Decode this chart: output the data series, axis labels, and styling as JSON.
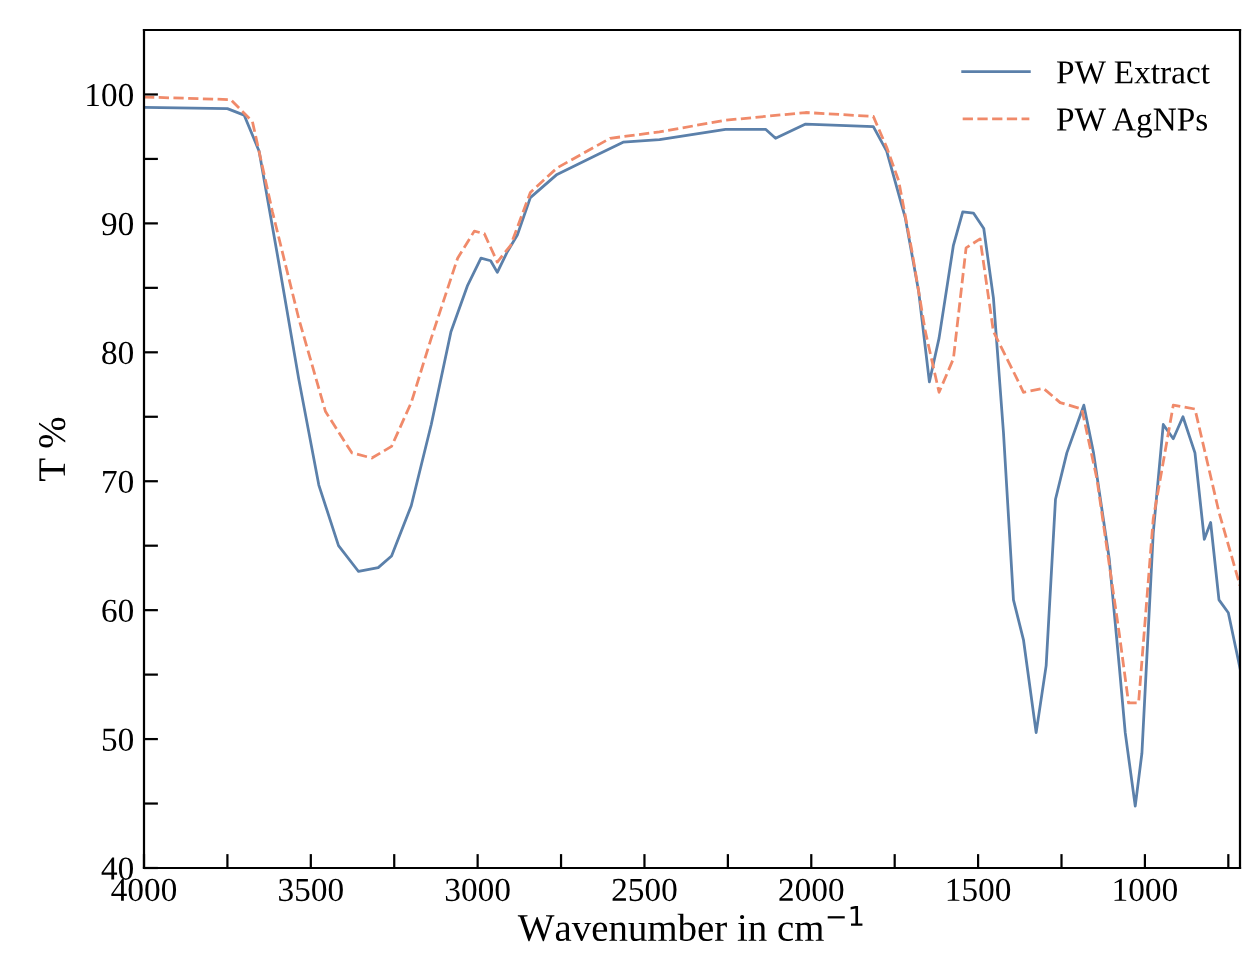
{
  "chart_data": {
    "type": "line",
    "xlabel": "Wavenumber in cm$^{−1}$",
    "ylabel": "T %",
    "xlim": [
      4000,
      715
    ],
    "ylim": [
      40,
      105
    ],
    "xticks": [
      4000,
      {
        "value": 3750,
        "label": null
      },
      3500,
      {
        "value": 3250,
        "label": null
      },
      3000,
      {
        "value": 2750,
        "label": null
      },
      2500,
      {
        "value": 2250,
        "label": null
      },
      2000,
      {
        "value": 1750,
        "label": null
      },
      1500,
      {
        "value": 1250,
        "label": null
      },
      1000,
      {
        "value": 750,
        "label": null
      }
    ],
    "yticks": [
      40,
      {
        "value": 45,
        "label": null
      },
      50,
      {
        "value": 55,
        "label": null
      },
      60,
      {
        "value": 65,
        "label": null
      },
      70,
      {
        "value": 75,
        "label": null
      },
      80,
      {
        "value": 85,
        "label": null
      },
      90,
      {
        "value": 95,
        "label": null
      },
      100
    ],
    "grid": false,
    "legend": "top right",
    "marker": "none",
    "series": [
      {
        "name": "PW Extract",
        "color": "#5b80aa",
        "line_style": "solid",
        "x": [
          4000,
          3750,
          3700,
          3655,
          3595,
          3536,
          3476,
          3417,
          3357,
          3298,
          3258,
          3199,
          3139,
          3080,
          3030,
          2990,
          2961,
          2941,
          2911,
          2881,
          2842,
          2762,
          2643,
          2564,
          2455,
          2257,
          2137,
          2107,
          2017,
          1814,
          1774,
          1718,
          1678,
          1646,
          1617,
          1574,
          1546,
          1514,
          1483,
          1454,
          1424,
          1394,
          1364,
          1326,
          1296,
          1268,
          1234,
          1183,
          1154,
          1107,
          1077,
          1059,
          1029,
          1009,
          975,
          945,
          915,
          886,
          850,
          822,
          803,
          778,
          750,
          715
        ],
        "values": [
          99.0,
          98.9,
          98.4,
          95.6,
          86.8,
          77.9,
          69.7,
          65.0,
          63.0,
          63.3,
          64.2,
          68.1,
          74.4,
          81.6,
          85.2,
          87.3,
          87.1,
          86.2,
          87.8,
          89.1,
          92.0,
          93.8,
          95.3,
          96.3,
          96.5,
          97.3,
          97.3,
          96.6,
          97.7,
          97.5,
          95.6,
          90.4,
          84.7,
          77.7,
          81.1,
          88.3,
          90.9,
          90.8,
          89.6,
          84.2,
          73.8,
          60.8,
          57.7,
          50.5,
          55.7,
          68.6,
          72.2,
          75.9,
          72.2,
          64.0,
          55.7,
          50.5,
          44.8,
          48.9,
          66.0,
          74.4,
          73.3,
          75.0,
          72.2,
          65.5,
          66.8,
          60.8,
          59.8,
          55.5
        ]
      },
      {
        "name": "PW AgNPs",
        "color": "#f08a6a",
        "line_style": "dashed",
        "x": [
          4000,
          3740,
          3675,
          3615,
          3536,
          3456,
          3377,
          3317,
          3258,
          3199,
          3139,
          3060,
          3010,
          2980,
          2941,
          2901,
          2842,
          2762,
          2603,
          2455,
          2257,
          2017,
          1814,
          1774,
          1738,
          1698,
          1658,
          1617,
          1574,
          1536,
          1494,
          1454,
          1394,
          1364,
          1304,
          1254,
          1189,
          1144,
          1077,
          1049,
          1019,
          975,
          915,
          850,
          778,
          715
        ],
        "values": [
          99.8,
          99.6,
          97.9,
          90.9,
          82.6,
          75.4,
          72.2,
          71.8,
          72.7,
          76.1,
          81.1,
          87.3,
          89.4,
          89.2,
          87.0,
          88.3,
          92.4,
          94.3,
          96.6,
          97.1,
          98.0,
          98.6,
          98.3,
          95.9,
          93.3,
          87.8,
          81.6,
          76.9,
          79.5,
          88.1,
          88.8,
          81.6,
          78.5,
          76.9,
          77.2,
          76.1,
          75.6,
          70.2,
          58.2,
          52.8,
          52.8,
          67.1,
          75.9,
          75.6,
          67.6,
          61.9
        ]
      }
    ]
  }
}
